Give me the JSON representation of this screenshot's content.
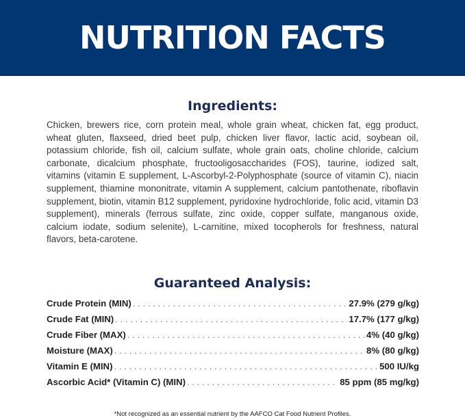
{
  "header": {
    "title": "NUTRITION FACTS",
    "color": "#023673"
  },
  "ingredients": {
    "heading": "Ingredients:",
    "text": "Chicken, brewers rice, corn protein meal, whole grain wheat, chicken fat, egg product, wheat gluten, flaxseed, dried beet pulp, chicken liver flavor, lactic acid, soybean oil, potassium chloride, fish oil, calcium sulfate, whole grain oats, choline chloride, calcium carbonate, dicalcium phosphate, fructooligosaccharides (FOS), taurine, iodized salt, vitamins (vitamin E supplement, L-Ascorbyl-2-Polyphosphate (source of vitamin C), niacin supplement, thiamine mononitrate, vitamin A supplement, calcium pantothenate, riboflavin supplement, biotin, vitamin B12 supplement, pyridoxine hydrochloride, folic acid, vitamin D3 supplement), minerals (ferrous sulfate, zinc oxide, copper sulfate, manganous oxide, calcium iodate, sodium selenite), L-carnitine, mixed tocopherols for freshness, natural flavors, beta-carotene."
  },
  "analysis": {
    "heading": "Guaranteed Analysis:",
    "rows": [
      {
        "label": "Crude Protein (MIN)",
        "value": "27.9% (279 g/kg)"
      },
      {
        "label": "Crude Fat (MIN)",
        "value": "17.7% (177 g/kg)"
      },
      {
        "label": "Crude Fiber (MAX)",
        "value": "4% (40 g/kg)"
      },
      {
        "label": "Moisture (MAX)",
        "value": "8% (80 g/kg)"
      },
      {
        "label": "Vitamin E (MIN)",
        "value": "500 IU/kg"
      },
      {
        "label": "Ascorbic Acid* (Vitamin C) (MIN)",
        "value": "85 ppm (85 mg/kg)"
      }
    ]
  },
  "footnote": "*Not recognized as an essential nutrient by the AAFCO Cat Food Nutrient Profiles."
}
